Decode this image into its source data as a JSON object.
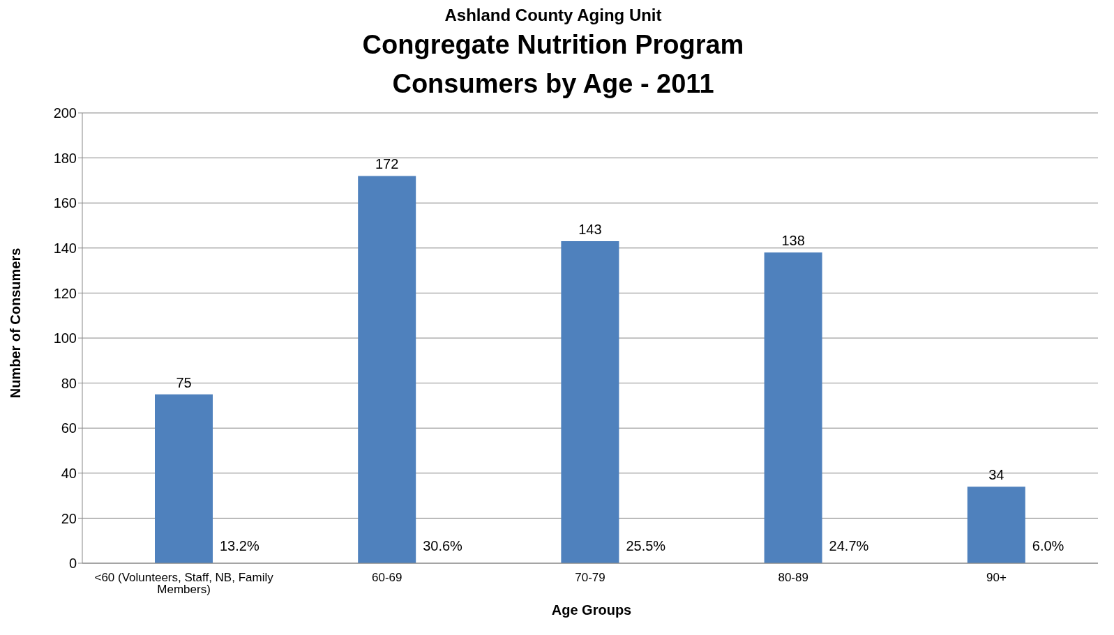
{
  "chart_data": {
    "type": "bar",
    "title": "Congregate Nutrition Program\nConsumers by Age - 2011",
    "subtitle": "Ashland County Aging Unit",
    "xlabel": "Age Groups",
    "ylabel": "Number of Consumers",
    "categories": [
      "<60 (Volunteers, Staff, NB, Family Members)",
      "60-69",
      "70-79",
      "80-89",
      "90+"
    ],
    "values": [
      75,
      172,
      143,
      138,
      34
    ],
    "color": "#4f81bd",
    "data_labels": true,
    "ylim": [
      0,
      200
    ],
    "yticks": [
      0,
      20,
      40,
      60,
      80,
      100,
      120,
      140,
      160,
      180,
      200
    ],
    "grid": "y",
    "annotations": [
      {
        "text": "13.2%",
        "x": "<60 (Volunteers, Staff, NB, Family Members)",
        "y": 0
      },
      {
        "text": "30.6%",
        "x": "60-69",
        "y": 0
      },
      {
        "text": "25.5%",
        "x": "70-79",
        "y": 0
      },
      {
        "text": "24.7%",
        "x": "80-89",
        "y": 0
      },
      {
        "text": "6.0%",
        "x": "90+",
        "y": 0
      }
    ]
  }
}
